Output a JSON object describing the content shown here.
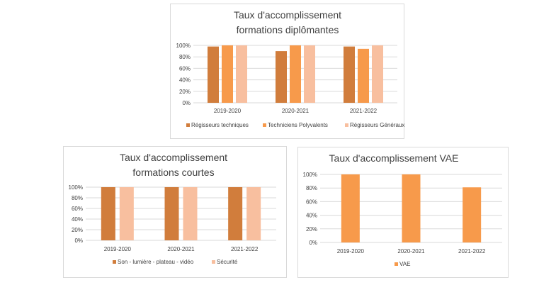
{
  "colors": {
    "dark_orange": "#d17d3c",
    "orange": "#f79a4b",
    "light_orange": "#f8bf9f"
  },
  "chart_data": [
    {
      "id": "diplomantes",
      "type": "bar",
      "title_lines": [
        "Taux d'accomplissement",
        "formations diplômantes"
      ],
      "categories": [
        "2019-2020",
        "2020-2021",
        "2021-2022"
      ],
      "yticks": [
        "0%",
        "20%",
        "40%",
        "60%",
        "80%",
        "100%"
      ],
      "ylim": [
        0,
        100
      ],
      "grid": true,
      "legend_position": "bottom",
      "series": [
        {
          "name": "Régisseurs techniques",
          "color": "#d17d3c",
          "values": [
            98,
            90,
            98
          ]
        },
        {
          "name": "Techniciens Polyvalents",
          "color": "#f79a4b",
          "values": [
            100,
            100,
            94
          ]
        },
        {
          "name": "Régisseurs Généraux",
          "color": "#f8bf9f",
          "values": [
            100,
            100,
            100
          ]
        }
      ]
    },
    {
      "id": "courtes",
      "type": "bar",
      "title_lines": [
        "Taux d'accomplissement",
        "formations courtes"
      ],
      "categories": [
        "2019-2020",
        "2020-2021",
        "2021-2022"
      ],
      "yticks": [
        "0%",
        "20%",
        "40%",
        "60%",
        "80%",
        "100%"
      ],
      "ylim": [
        0,
        100
      ],
      "grid": true,
      "legend_position": "bottom",
      "series": [
        {
          "name": "Son - lumière - plateau - vidéo",
          "color": "#d17d3c",
          "values": [
            100,
            100,
            100
          ]
        },
        {
          "name": "Sécurité",
          "color": "#f8bf9f",
          "values": [
            100,
            100,
            100
          ]
        }
      ]
    },
    {
      "id": "vae",
      "type": "bar",
      "title_lines": [
        "Taux d'accomplissement VAE"
      ],
      "categories": [
        "2019-2020",
        "2020-2021",
        "2021-2022"
      ],
      "yticks": [
        "0%",
        "20%",
        "40%",
        "60%",
        "80%",
        "100%"
      ],
      "ylim": [
        0,
        100
      ],
      "grid": true,
      "legend_position": "bottom",
      "series": [
        {
          "name": "VAE",
          "color": "#f79a4b",
          "values": [
            100,
            100,
            81
          ]
        }
      ]
    }
  ]
}
